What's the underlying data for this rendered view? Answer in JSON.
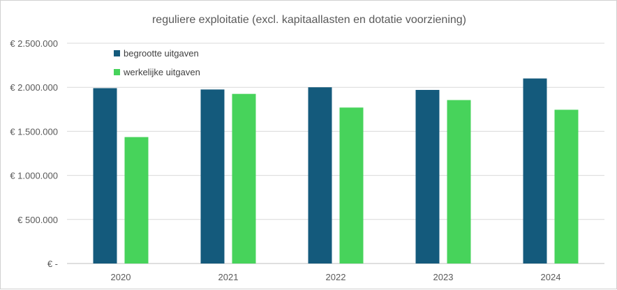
{
  "colors": {
    "begrotte": "#145a7c",
    "werkelijke": "#47d35b",
    "grid": "#d9d9d9",
    "axis": "#bfbfbf",
    "text": "#595959"
  },
  "chart_data": {
    "type": "bar",
    "title": "reguliere exploitatie (excl. kapitaallasten en dotatie voorziening)",
    "xlabel": "",
    "ylabel": "",
    "categories": [
      "2020",
      "2021",
      "2022",
      "2023",
      "2024"
    ],
    "series": [
      {
        "name": "begrootte uitgaven",
        "values": [
          1990000,
          1975000,
          2000000,
          1970000,
          2100000
        ]
      },
      {
        "name": "werkelijke uitgaven",
        "values": [
          1435000,
          1925000,
          1770000,
          1855000,
          1745000
        ]
      }
    ],
    "ylim": [
      0,
      2500000
    ],
    "yticks": [
      0,
      500000,
      1000000,
      1500000,
      2000000,
      2500000
    ],
    "ytick_labels": [
      "€ -",
      "€ 500.000",
      "€ 1.000.000",
      "€ 1.500.000",
      "€ 2.000.000",
      "€ 2.500.000"
    ],
    "grid": true,
    "legend_position": "top-left"
  }
}
